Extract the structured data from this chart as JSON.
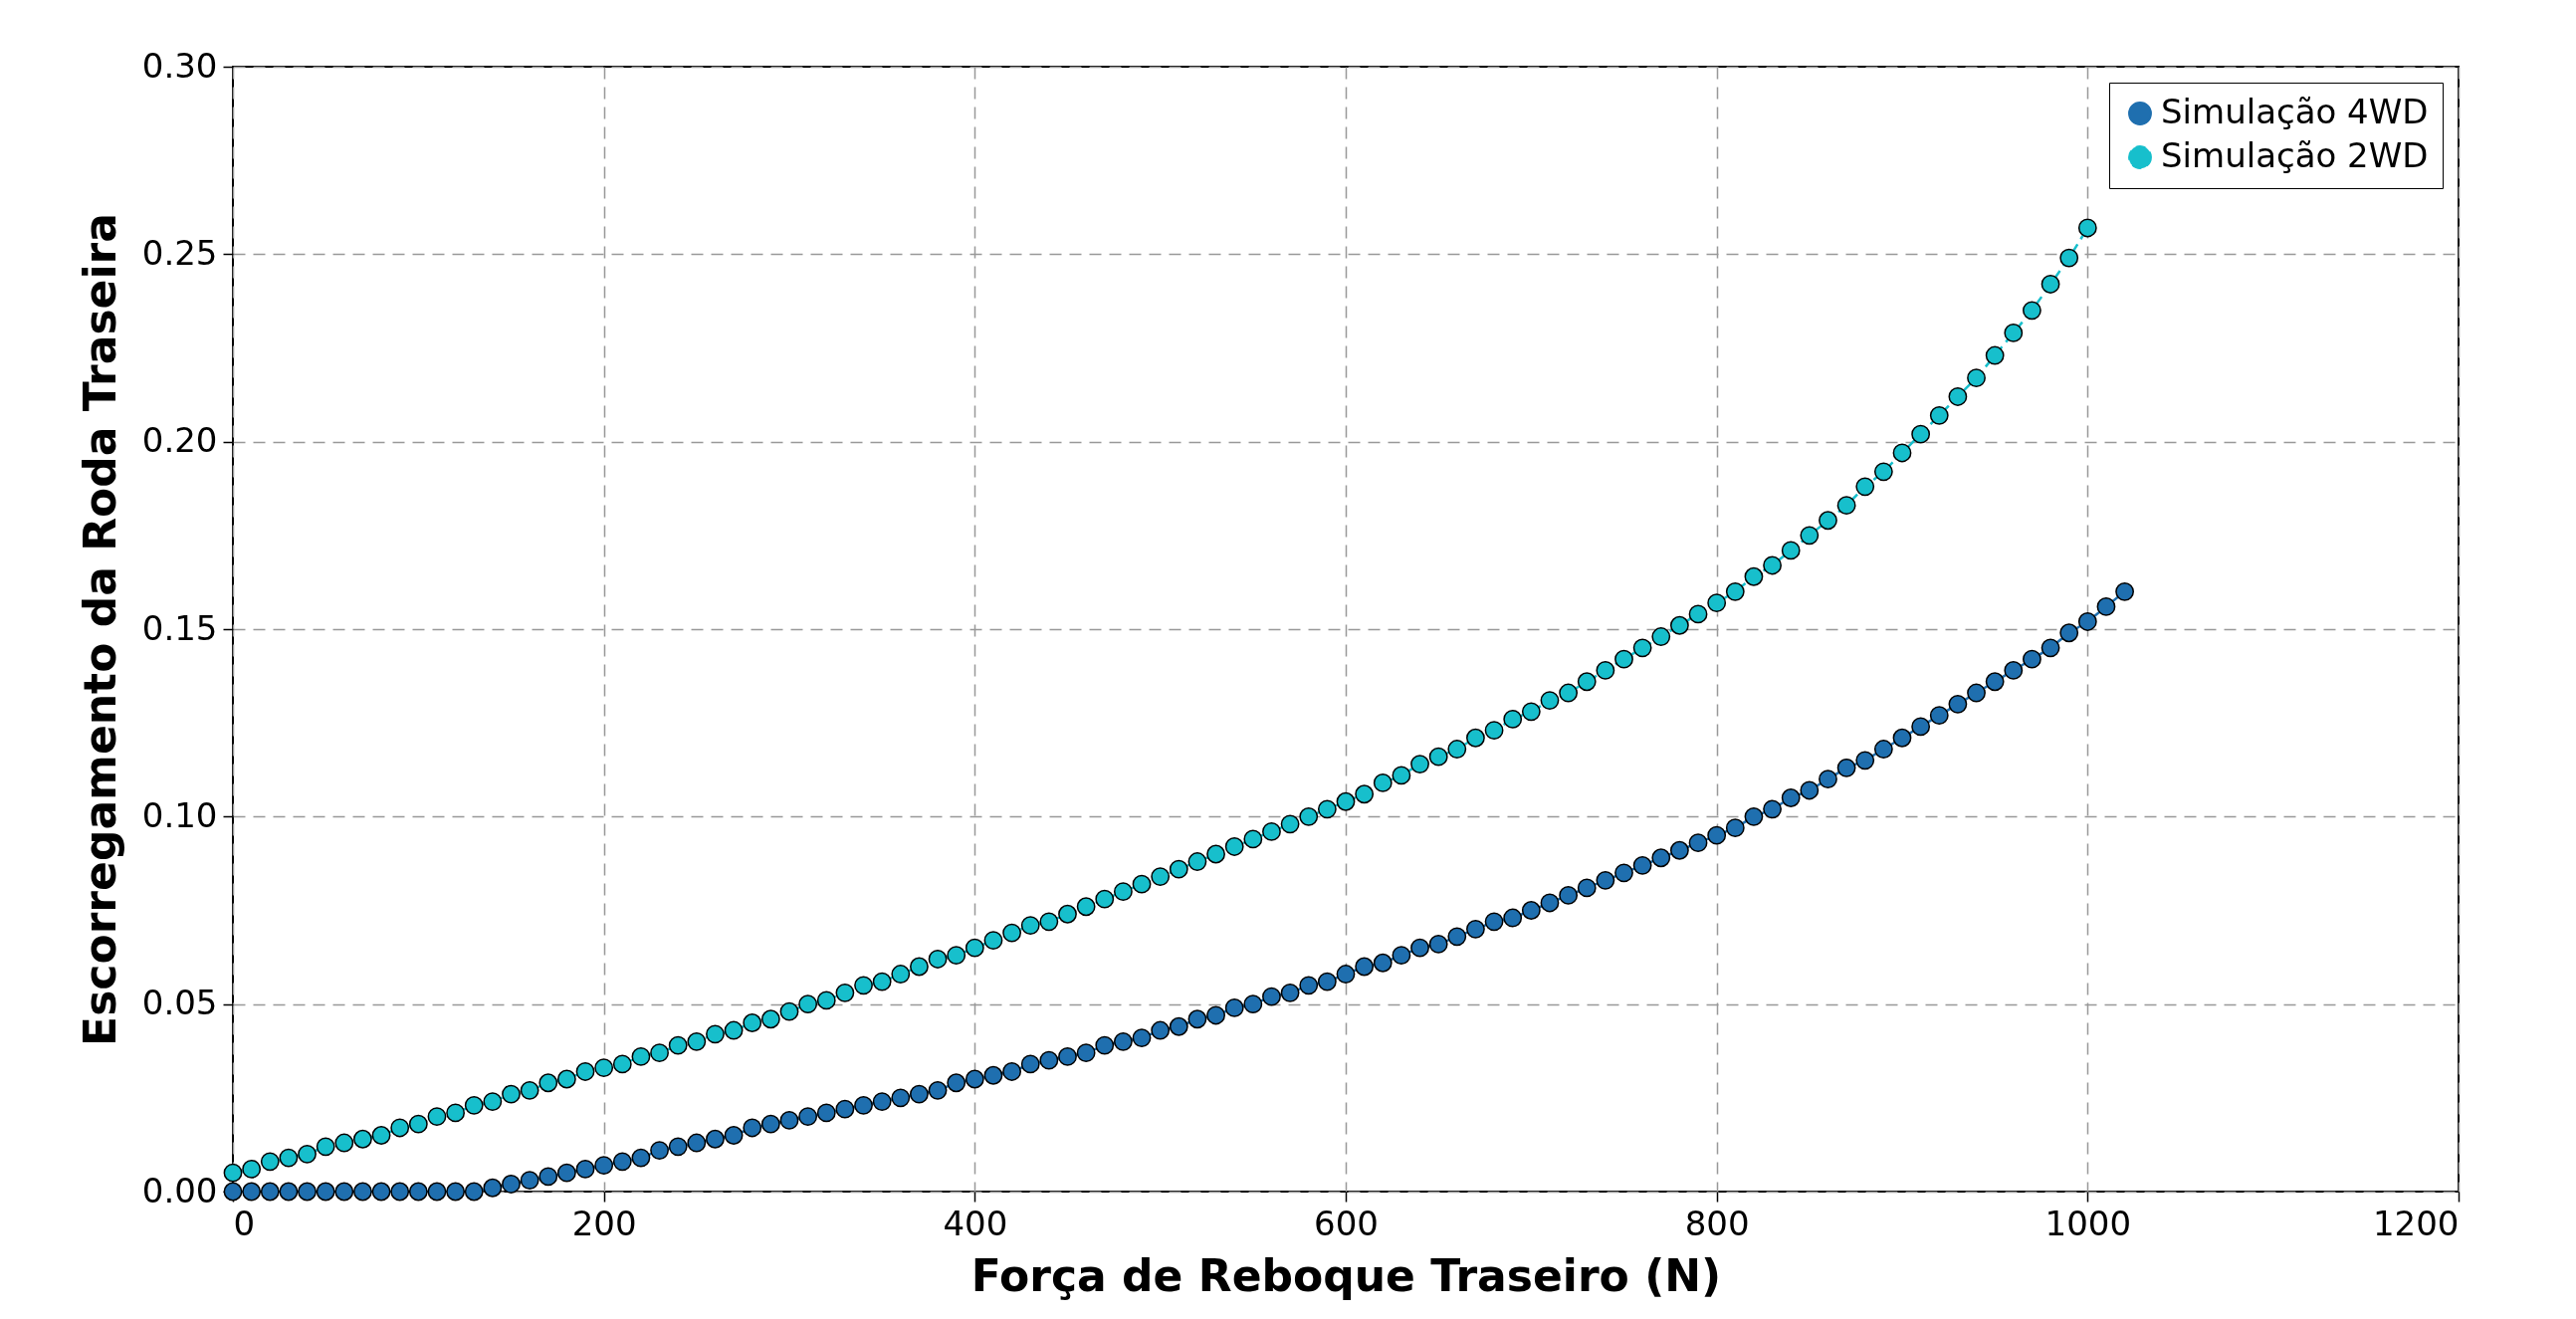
{
  "chart_data": {
    "type": "line",
    "xlabel": "Força de Reboque Traseiro (N)",
    "ylabel": "Escorregamento da Roda Traseira",
    "xlim": [
      0,
      1200
    ],
    "xticks": [
      0,
      200,
      400,
      600,
      800,
      1000,
      1200
    ],
    "ylim": [
      0,
      0.3
    ],
    "yticks": [
      {
        "value": 0,
        "label": "0.00"
      },
      {
        "value": 0.05,
        "label": "0.05"
      },
      {
        "value": 0.1,
        "label": "0.10"
      },
      {
        "value": 0.15,
        "label": "0.15"
      },
      {
        "value": 0.2,
        "label": "0.20"
      },
      {
        "value": 0.25,
        "label": "0.25"
      },
      {
        "value": 0.3,
        "label": "0.30"
      }
    ],
    "grid": true,
    "legend": "top right",
    "marker": "circle",
    "series": [
      {
        "name": "Simulação 4WD",
        "color": "#1f6faf",
        "line_style": "solid",
        "x": [
          0,
          10,
          20,
          30,
          40,
          50,
          60,
          70,
          80,
          90,
          100,
          110,
          120,
          130,
          140,
          150,
          160,
          170,
          180,
          190,
          200,
          210,
          220,
          230,
          240,
          250,
          260,
          270,
          280,
          290,
          300,
          310,
          320,
          330,
          340,
          350,
          360,
          370,
          380,
          390,
          400,
          410,
          420,
          430,
          440,
          450,
          460,
          470,
          480,
          490,
          500,
          510,
          520,
          530,
          540,
          550,
          560,
          570,
          580,
          590,
          600,
          610,
          620,
          630,
          640,
          650,
          660,
          670,
          680,
          690,
          700,
          710,
          720,
          730,
          740,
          750,
          760,
          770,
          780,
          790,
          800,
          810,
          820,
          830,
          840,
          850,
          860,
          870,
          880,
          890,
          900,
          910,
          920,
          930,
          940,
          950,
          960,
          970,
          980,
          990,
          1000,
          1010,
          1020
        ],
        "values": [
          0,
          0,
          0,
          0,
          0,
          0,
          0,
          0,
          0,
          0,
          0,
          0,
          0,
          0,
          0.001,
          0.002,
          0.003,
          0.004,
          0.005,
          0.006,
          0.007,
          0.008,
          0.009,
          0.011,
          0.012,
          0.013,
          0.014,
          0.015,
          0.017,
          0.018,
          0.019,
          0.02,
          0.021,
          0.022,
          0.023,
          0.024,
          0.025,
          0.026,
          0.027,
          0.029,
          0.03,
          0.031,
          0.032,
          0.034,
          0.035,
          0.036,
          0.037,
          0.039,
          0.04,
          0.041,
          0.043,
          0.044,
          0.046,
          0.047,
          0.049,
          0.05,
          0.052,
          0.053,
          0.055,
          0.056,
          0.058,
          0.06,
          0.061,
          0.063,
          0.065,
          0.066,
          0.068,
          0.07,
          0.072,
          0.073,
          0.075,
          0.077,
          0.079,
          0.081,
          0.083,
          0.085,
          0.087,
          0.089,
          0.091,
          0.093,
          0.095,
          0.097,
          0.1,
          0.102,
          0.105,
          0.107,
          0.11,
          0.113,
          0.115,
          0.118,
          0.121,
          0.124,
          0.127,
          0.13,
          0.133,
          0.136,
          0.139,
          0.142,
          0.145,
          0.149,
          0.152,
          0.156,
          0.16
        ]
      },
      {
        "name": "Simulação 2WD",
        "color": "#17bfcc",
        "line_style": "dashed",
        "x": [
          0,
          10,
          20,
          30,
          40,
          50,
          60,
          70,
          80,
          90,
          100,
          110,
          120,
          130,
          140,
          150,
          160,
          170,
          180,
          190,
          200,
          210,
          220,
          230,
          240,
          250,
          260,
          270,
          280,
          290,
          300,
          310,
          320,
          330,
          340,
          350,
          360,
          370,
          380,
          390,
          400,
          410,
          420,
          430,
          440,
          450,
          460,
          470,
          480,
          490,
          500,
          510,
          520,
          530,
          540,
          550,
          560,
          570,
          580,
          590,
          600,
          610,
          620,
          630,
          640,
          650,
          660,
          670,
          680,
          690,
          700,
          710,
          720,
          730,
          740,
          750,
          760,
          770,
          780,
          790,
          800,
          810,
          820,
          830,
          840,
          850,
          860,
          870,
          880,
          890,
          900,
          910,
          920,
          930,
          940,
          950,
          960,
          970,
          980,
          990,
          1000
        ],
        "values": [
          0.005,
          0.006,
          0.008,
          0.009,
          0.01,
          0.012,
          0.013,
          0.014,
          0.015,
          0.017,
          0.018,
          0.02,
          0.021,
          0.023,
          0.024,
          0.026,
          0.027,
          0.029,
          0.03,
          0.032,
          0.033,
          0.034,
          0.036,
          0.037,
          0.039,
          0.04,
          0.042,
          0.043,
          0.045,
          0.046,
          0.048,
          0.05,
          0.051,
          0.053,
          0.055,
          0.056,
          0.058,
          0.06,
          0.062,
          0.063,
          0.065,
          0.067,
          0.069,
          0.071,
          0.072,
          0.074,
          0.076,
          0.078,
          0.08,
          0.082,
          0.084,
          0.086,
          0.088,
          0.09,
          0.092,
          0.094,
          0.096,
          0.098,
          0.1,
          0.102,
          0.104,
          0.106,
          0.109,
          0.111,
          0.114,
          0.116,
          0.118,
          0.121,
          0.123,
          0.126,
          0.128,
          0.131,
          0.133,
          0.136,
          0.139,
          0.142,
          0.145,
          0.148,
          0.151,
          0.154,
          0.157,
          0.16,
          0.164,
          0.167,
          0.171,
          0.175,
          0.179,
          0.183,
          0.188,
          0.192,
          0.197,
          0.202,
          0.207,
          0.212,
          0.217,
          0.223,
          0.229,
          0.235,
          0.242,
          0.249,
          0.257
        ]
      }
    ]
  }
}
